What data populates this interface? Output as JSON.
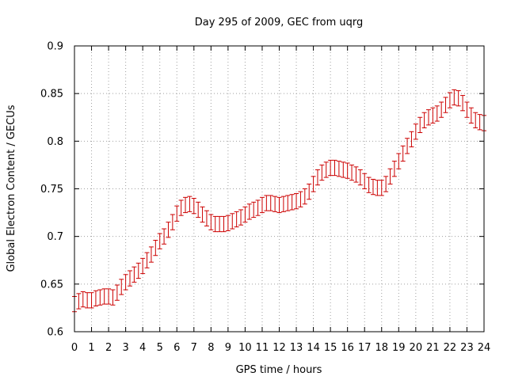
{
  "chart_data": {
    "type": "line",
    "title": "Day 295 of 2009, GEC from uqrg",
    "xlabel": "GPS time / hours",
    "ylabel": "Global Electron Content / GECUs",
    "xlim": [
      0,
      24
    ],
    "ylim": [
      0.6,
      0.9
    ],
    "xticks": [
      0,
      1,
      2,
      3,
      4,
      5,
      6,
      7,
      8,
      9,
      10,
      11,
      12,
      13,
      14,
      15,
      16,
      17,
      18,
      19,
      20,
      21,
      22,
      23,
      24
    ],
    "yticks": [
      0.6,
      0.65,
      0.7,
      0.75,
      0.8,
      0.85,
      0.9
    ],
    "grid": true,
    "color": "#cc0000",
    "error_bar": 0.008,
    "series": [
      {
        "x": [
          0,
          0.25,
          0.5,
          0.75,
          1,
          1.25,
          1.5,
          1.75,
          2,
          2.25,
          2.5,
          2.75,
          3,
          3.25,
          3.5,
          3.75,
          4,
          4.25,
          4.5,
          4.75,
          5,
          5.25,
          5.5,
          5.75,
          6,
          6.25,
          6.5,
          6.75,
          7,
          7.25,
          7.5,
          7.75,
          8,
          8.25,
          8.5,
          8.75,
          9,
          9.25,
          9.5,
          9.75,
          10,
          10.25,
          10.5,
          10.75,
          11,
          11.25,
          11.5,
          11.75,
          12,
          12.25,
          12.5,
          12.75,
          13,
          13.25,
          13.5,
          13.75,
          14,
          14.25,
          14.5,
          14.75,
          15,
          15.25,
          15.5,
          15.75,
          16,
          16.25,
          16.5,
          16.75,
          17,
          17.25,
          17.5,
          17.75,
          18,
          18.25,
          18.5,
          18.75,
          19,
          19.25,
          19.5,
          19.75,
          20,
          20.25,
          20.5,
          20.75,
          21,
          21.25,
          21.5,
          21.75,
          22,
          22.25,
          22.5,
          22.75,
          23,
          23.25,
          23.5,
          23.75,
          24
        ],
        "y": [
          0.629,
          0.632,
          0.634,
          0.633,
          0.633,
          0.635,
          0.636,
          0.637,
          0.637,
          0.636,
          0.641,
          0.647,
          0.652,
          0.656,
          0.66,
          0.664,
          0.669,
          0.675,
          0.681,
          0.688,
          0.695,
          0.7,
          0.707,
          0.715,
          0.724,
          0.73,
          0.733,
          0.734,
          0.732,
          0.728,
          0.723,
          0.719,
          0.715,
          0.713,
          0.713,
          0.713,
          0.714,
          0.716,
          0.718,
          0.72,
          0.723,
          0.726,
          0.728,
          0.73,
          0.733,
          0.735,
          0.735,
          0.734,
          0.733,
          0.734,
          0.735,
          0.736,
          0.737,
          0.739,
          0.742,
          0.747,
          0.755,
          0.762,
          0.767,
          0.77,
          0.772,
          0.772,
          0.771,
          0.77,
          0.769,
          0.767,
          0.765,
          0.762,
          0.758,
          0.754,
          0.752,
          0.751,
          0.751,
          0.755,
          0.763,
          0.771,
          0.779,
          0.787,
          0.795,
          0.802,
          0.81,
          0.817,
          0.822,
          0.825,
          0.827,
          0.829,
          0.833,
          0.838,
          0.843,
          0.846,
          0.845,
          0.84,
          0.833,
          0.827,
          0.822,
          0.82,
          0.819
        ]
      }
    ]
  }
}
